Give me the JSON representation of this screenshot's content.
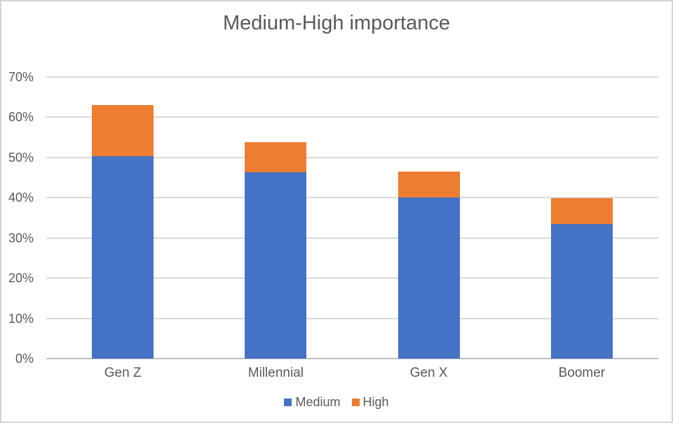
{
  "chart_data": {
    "type": "bar",
    "stacked": true,
    "title": "Medium-High importance",
    "categories": [
      "Gen Z",
      "Millennial",
      "Gen X",
      "Boomer"
    ],
    "series": [
      {
        "name": "Medium",
        "color": "#4472C4",
        "values": [
          50.3,
          46.3,
          40.1,
          33.5
        ]
      },
      {
        "name": "High",
        "color": "#ED7D31",
        "values": [
          12.8,
          7.5,
          6.4,
          6.4
        ]
      }
    ],
    "xlabel": "",
    "ylabel": "",
    "ylim": [
      0,
      70
    ],
    "ytick_step": 10,
    "ytick_labels": [
      "0%",
      "10%",
      "20%",
      "30%",
      "40%",
      "50%",
      "60%",
      "70%"
    ],
    "grid": true,
    "legend_position": "bottom"
  },
  "colors": {
    "medium_series": "#4472C4",
    "high_series": "#ED7D31",
    "gridline": "#D9D9D9",
    "axis_line": "#BFBFBF",
    "text": "#595959",
    "chart_border": "#D4D4D4",
    "background": "#FFFFFF"
  }
}
